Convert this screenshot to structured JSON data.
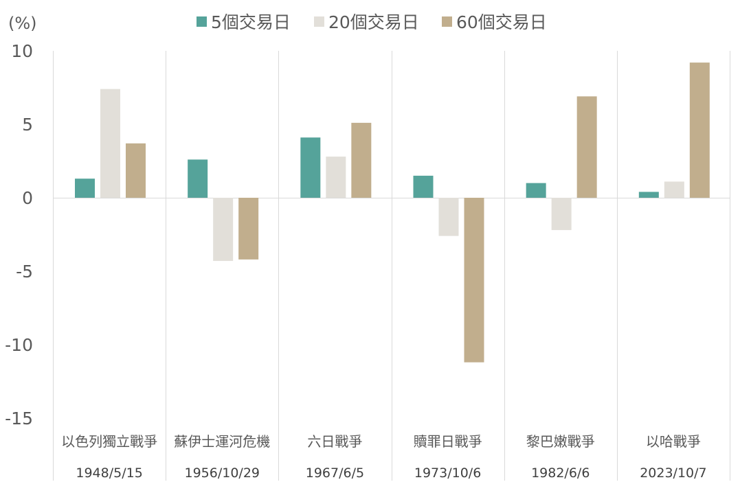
{
  "chart_data": {
    "type": "bar",
    "unit_label": "(%)",
    "categories": [
      "以色列獨立戰爭",
      "蘇伊士運河危機",
      "六日戰爭",
      "贖罪日戰爭",
      "黎巴嫩戰爭",
      "以哈戰爭"
    ],
    "dates": [
      "1948/5/15",
      "1956/10/29",
      "1967/6/5",
      "1973/10/6",
      "1982/6/6",
      "2023/10/7"
    ],
    "series": [
      {
        "name": "5個交易日",
        "color": "#55a39a",
        "values": [
          1.3,
          2.6,
          4.1,
          1.5,
          1.0,
          0.4
        ]
      },
      {
        "name": "20個交易日",
        "color": "#e2dfd9",
        "values": [
          7.4,
          -4.3,
          2.8,
          -2.6,
          -2.2,
          1.1
        ]
      },
      {
        "name": "60個交易日",
        "color": "#c1ae8d",
        "values": [
          3.7,
          -4.2,
          5.1,
          -11.2,
          6.9,
          9.2
        ]
      }
    ],
    "ylim": [
      -15,
      10
    ],
    "yticks": [
      10,
      5,
      0,
      -5,
      -10,
      -15
    ],
    "ytick_labels": [
      "10",
      "5",
      "0",
      "-5",
      "-10",
      "-15"
    ],
    "legend_position": "top",
    "grid": false,
    "separators": true
  }
}
